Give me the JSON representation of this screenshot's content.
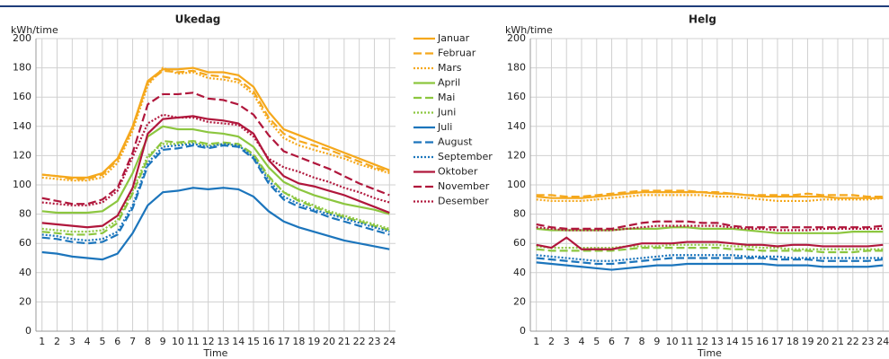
{
  "chart_data": [
    {
      "type": "line",
      "title": "Ukedag",
      "y_label": "kWh/time",
      "x_label": "Time",
      "x": [
        1,
        2,
        3,
        4,
        5,
        6,
        7,
        8,
        9,
        10,
        11,
        12,
        13,
        14,
        15,
        16,
        17,
        18,
        19,
        20,
        21,
        22,
        23,
        24
      ],
      "xlim": [
        0.6,
        24.4
      ],
      "xticks": [
        1,
        2,
        3,
        4,
        5,
        6,
        7,
        8,
        9,
        10,
        11,
        12,
        13,
        14,
        15,
        16,
        17,
        18,
        19,
        20,
        21,
        22,
        23,
        24
      ],
      "ylim": [
        0,
        200
      ],
      "yticks": [
        0,
        20,
        40,
        60,
        80,
        100,
        120,
        140,
        160,
        180,
        200
      ],
      "grid": true,
      "series": [
        {
          "name": "Januar",
          "color": "#f5a81c",
          "dash": "solid",
          "values": [
            107,
            106,
            105,
            105,
            108,
            118,
            140,
            171,
            179,
            179,
            180,
            177,
            177,
            175,
            167,
            150,
            138,
            134,
            130,
            126,
            122,
            118,
            114,
            110
          ]
        },
        {
          "name": "Februar",
          "color": "#f5a81c",
          "dash": "dashed",
          "values": [
            107,
            106,
            104,
            104,
            107,
            117,
            139,
            170,
            178,
            177,
            178,
            175,
            174,
            172,
            164,
            146,
            135,
            130,
            127,
            124,
            120,
            116,
            112,
            109
          ]
        },
        {
          "name": "Mars",
          "color": "#f5a81c",
          "dash": "dotted",
          "values": [
            105,
            104,
            103,
            103,
            105,
            115,
            137,
            168,
            180,
            176,
            177,
            173,
            172,
            170,
            162,
            144,
            132,
            127,
            124,
            121,
            118,
            114,
            111,
            108
          ]
        },
        {
          "name": "April",
          "color": "#8cc63f",
          "dash": "solid",
          "values": [
            82,
            81,
            81,
            81,
            82,
            89,
            108,
            133,
            140,
            138,
            138,
            136,
            135,
            133,
            126,
            112,
            102,
            97,
            93,
            90,
            87,
            85,
            83,
            80
          ]
        },
        {
          "name": "Mai",
          "color": "#8cc63f",
          "dash": "dashed",
          "values": [
            68,
            67,
            66,
            66,
            67,
            74,
            94,
            118,
            130,
            129,
            130,
            128,
            129,
            128,
            121,
            106,
            95,
            89,
            85,
            81,
            78,
            75,
            72,
            69
          ]
        },
        {
          "name": "Juni",
          "color": "#8cc63f",
          "dash": "dotted",
          "values": [
            70,
            69,
            68,
            68,
            69,
            76,
            96,
            120,
            128,
            128,
            129,
            127,
            128,
            127,
            120,
            105,
            95,
            90,
            86,
            82,
            79,
            76,
            73,
            70
          ]
        },
        {
          "name": "Juli",
          "color": "#1c75bc",
          "dash": "solid",
          "values": [
            54,
            53,
            51,
            50,
            49,
            53,
            67,
            86,
            95,
            96,
            98,
            97,
            98,
            97,
            92,
            82,
            75,
            71,
            68,
            65,
            62,
            60,
            58,
            56
          ]
        },
        {
          "name": "August",
          "color": "#1c75bc",
          "dash": "dashed",
          "values": [
            64,
            63,
            61,
            60,
            61,
            66,
            84,
            113,
            124,
            125,
            127,
            125,
            127,
            126,
            118,
            101,
            90,
            85,
            82,
            78,
            75,
            72,
            69,
            66
          ]
        },
        {
          "name": "September",
          "color": "#1c75bc",
          "dash": "dotted",
          "values": [
            66,
            65,
            63,
            62,
            63,
            68,
            86,
            115,
            126,
            127,
            128,
            126,
            128,
            127,
            119,
            103,
            92,
            87,
            83,
            80,
            77,
            74,
            71,
            68
          ]
        },
        {
          "name": "Oktober",
          "color": "#b0173c",
          "dash": "solid",
          "values": [
            74,
            73,
            72,
            71,
            72,
            79,
            98,
            135,
            145,
            146,
            147,
            145,
            144,
            142,
            135,
            117,
            106,
            101,
            99,
            96,
            93,
            89,
            85,
            81
          ]
        },
        {
          "name": "November",
          "color": "#b0173c",
          "dash": "dashed",
          "values": [
            91,
            89,
            87,
            87,
            90,
            98,
            122,
            155,
            162,
            162,
            163,
            159,
            158,
            155,
            148,
            134,
            123,
            119,
            115,
            111,
            106,
            101,
            97,
            93
          ]
        },
        {
          "name": "Desember",
          "color": "#b0173c",
          "dash": "dotted",
          "values": [
            88,
            87,
            86,
            86,
            88,
            96,
            119,
            142,
            148,
            146,
            146,
            143,
            142,
            141,
            133,
            118,
            112,
            109,
            105,
            102,
            98,
            95,
            91,
            88
          ]
        }
      ]
    },
    {
      "type": "line",
      "title": "Helg",
      "y_label": "kWh/time",
      "x_label": "Time",
      "x": [
        1,
        2,
        3,
        4,
        5,
        6,
        7,
        8,
        9,
        10,
        11,
        12,
        13,
        14,
        15,
        16,
        17,
        18,
        19,
        20,
        21,
        22,
        23,
        24
      ],
      "xlim": [
        0.6,
        24.4
      ],
      "xticks": [
        1,
        2,
        3,
        4,
        5,
        6,
        7,
        8,
        9,
        10,
        11,
        12,
        13,
        14,
        15,
        16,
        17,
        18,
        19,
        20,
        21,
        22,
        23,
        24
      ],
      "ylim": [
        0,
        200
      ],
      "yticks": [
        0,
        20,
        40,
        60,
        80,
        100,
        120,
        140,
        160,
        180,
        200
      ],
      "grid": true,
      "series": [
        {
          "color": "#f5a81c",
          "dash": "solid",
          "values": [
            92,
            91,
            91,
            91,
            92,
            93,
            94,
            95,
            95,
            95,
            95,
            95,
            94,
            94,
            93,
            92,
            92,
            92,
            92,
            92,
            91,
            91,
            91,
            91
          ]
        },
        {
          "color": "#f5a81c",
          "dash": "dashed",
          "values": [
            93,
            93,
            92,
            92,
            93,
            94,
            95,
            96,
            96,
            96,
            96,
            95,
            95,
            94,
            93,
            93,
            93,
            93,
            94,
            93,
            93,
            93,
            92,
            92
          ]
        },
        {
          "color": "#f5a81c",
          "dash": "dotted",
          "values": [
            90,
            89,
            89,
            89,
            90,
            91,
            92,
            93,
            93,
            93,
            93,
            93,
            92,
            92,
            91,
            90,
            89,
            89,
            89,
            90,
            90,
            90,
            90,
            91
          ]
        },
        {
          "color": "#8cc63f",
          "dash": "solid",
          "values": [
            70,
            69,
            69,
            69,
            69,
            69,
            70,
            70,
            70,
            71,
            71,
            70,
            70,
            70,
            69,
            68,
            67,
            67,
            67,
            67,
            67,
            68,
            68,
            68
          ]
        },
        {
          "color": "#8cc63f",
          "dash": "dashed",
          "values": [
            56,
            55,
            55,
            55,
            55,
            55,
            56,
            57,
            57,
            57,
            57,
            57,
            57,
            56,
            56,
            55,
            55,
            55,
            55,
            54,
            54,
            54,
            55,
            55
          ]
        },
        {
          "color": "#8cc63f",
          "dash": "dotted",
          "values": [
            58,
            57,
            57,
            57,
            57,
            57,
            58,
            58,
            58,
            59,
            59,
            59,
            59,
            58,
            58,
            57,
            57,
            56,
            56,
            56,
            56,
            56,
            56,
            56
          ]
        },
        {
          "color": "#1c75bc",
          "dash": "solid",
          "values": [
            47,
            46,
            45,
            44,
            43,
            42,
            43,
            44,
            45,
            45,
            46,
            46,
            46,
            46,
            46,
            46,
            45,
            45,
            45,
            44,
            44,
            44,
            44,
            45
          ]
        },
        {
          "color": "#1c75bc",
          "dash": "dashed",
          "values": [
            50,
            49,
            48,
            47,
            46,
            46,
            47,
            48,
            49,
            50,
            50,
            50,
            50,
            50,
            50,
            50,
            49,
            49,
            49,
            48,
            48,
            48,
            48,
            49
          ]
        },
        {
          "color": "#1c75bc",
          "dash": "dotted",
          "values": [
            52,
            51,
            50,
            49,
            48,
            48,
            49,
            50,
            51,
            52,
            52,
            52,
            52,
            52,
            51,
            51,
            51,
            50,
            50,
            50,
            50,
            50,
            50,
            50
          ]
        },
        {
          "color": "#b0173c",
          "dash": "solid",
          "values": [
            59,
            57,
            64,
            56,
            56,
            56,
            58,
            60,
            60,
            60,
            61,
            61,
            61,
            60,
            59,
            59,
            58,
            59,
            59,
            58,
            58,
            58,
            58,
            59
          ]
        },
        {
          "color": "#b0173c",
          "dash": "dashed",
          "values": [
            73,
            71,
            70,
            70,
            70,
            70,
            72,
            74,
            75,
            75,
            75,
            74,
            74,
            72,
            71,
            71,
            71,
            71,
            71,
            71,
            71,
            71,
            71,
            72
          ]
        },
        {
          "color": "#b0173c",
          "dash": "dotted",
          "values": [
            71,
            70,
            69,
            69,
            69,
            69,
            70,
            71,
            72,
            72,
            72,
            72,
            72,
            71,
            70,
            70,
            69,
            69,
            69,
            70,
            70,
            70,
            70,
            70
          ]
        }
      ]
    }
  ]
}
